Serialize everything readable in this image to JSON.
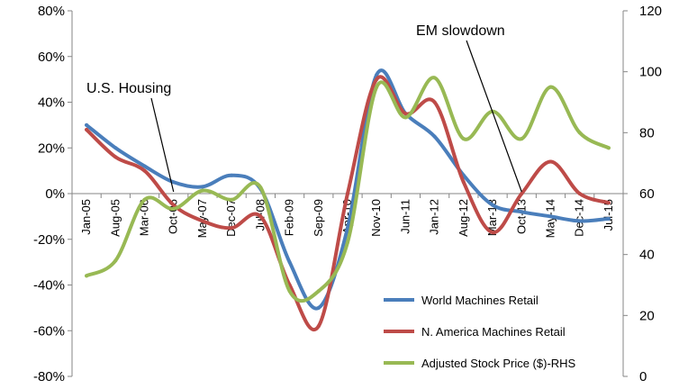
{
  "chart_data": {
    "type": "line",
    "x_tick_labels": [
      "Jan-05",
      "Aug-05",
      "Mar-06",
      "Oct-06",
      "May-07",
      "Dec-07",
      "Jul-08",
      "Feb-09",
      "Sep-09",
      "Apr-10",
      "Nov-10",
      "Jun-11",
      "Jan-12",
      "Aug-12",
      "Mar-13",
      "Oct-13",
      "May-14",
      "Dec-14",
      "Jul-15"
    ],
    "y_left": {
      "ylim": [
        -0.8,
        0.8
      ],
      "ticks": [
        "-80%",
        "-60%",
        "-40%",
        "-20%",
        "0%",
        "20%",
        "40%",
        "60%",
        "80%"
      ]
    },
    "y_right": {
      "ylim": [
        0,
        120
      ],
      "ticks": [
        "0",
        "20",
        "40",
        "60",
        "80",
        "100",
        "120"
      ]
    },
    "grid": false,
    "legend_position": "bottom-right",
    "series": [
      {
        "name": "World Machines Retail",
        "axis": "left",
        "color": "#4a7ebb",
        "x": [
          "Jan-05",
          "Aug-05",
          "Mar-06",
          "Oct-06",
          "May-07",
          "Dec-07",
          "Jul-08",
          "Feb-09",
          "Sep-09",
          "Apr-10",
          "Nov-10",
          "Jun-11",
          "Jan-12",
          "Aug-12",
          "Mar-13",
          "Oct-13",
          "May-14",
          "Dec-14",
          "Jul-15"
        ],
        "values": [
          0.3,
          0.2,
          0.12,
          0.05,
          0.03,
          0.08,
          0.02,
          -0.3,
          -0.5,
          -0.15,
          0.52,
          0.35,
          0.25,
          0.08,
          -0.05,
          -0.08,
          -0.1,
          -0.12,
          -0.11
        ]
      },
      {
        "name": "N. America Machines Retail",
        "axis": "left",
        "color": "#be4b48",
        "x": [
          "Jan-05",
          "Aug-05",
          "Mar-06",
          "Oct-06",
          "May-07",
          "Dec-07",
          "Jul-08",
          "Feb-09",
          "Sep-09",
          "Apr-10",
          "Nov-10",
          "Jun-11",
          "Jan-12",
          "Aug-12",
          "Mar-13",
          "Oct-13",
          "May-14",
          "Dec-14",
          "Jul-15"
        ],
        "values": [
          0.28,
          0.16,
          0.1,
          -0.05,
          -0.12,
          -0.15,
          -0.1,
          -0.4,
          -0.58,
          0.0,
          0.5,
          0.35,
          0.4,
          0.05,
          -0.17,
          0.0,
          0.14,
          0.0,
          -0.04
        ]
      },
      {
        "name": "Adjusted Stock Price ($)-RHS",
        "axis": "right",
        "color": "#98b954",
        "x": [
          "Jan-05",
          "Aug-05",
          "Mar-06",
          "Oct-06",
          "May-07",
          "Dec-07",
          "Jul-08",
          "Feb-09",
          "Sep-09",
          "Apr-10",
          "Nov-10",
          "Jun-11",
          "Jan-12",
          "Aug-12",
          "Mar-13",
          "Oct-13",
          "May-14",
          "Dec-14",
          "Jul-15"
        ],
        "values": [
          33,
          38,
          58,
          55,
          61,
          58,
          62,
          28,
          28,
          44,
          95,
          85,
          98,
          78,
          87,
          78,
          95,
          80,
          75
        ]
      }
    ],
    "annotations": [
      {
        "text": "U.S. Housing",
        "x": "Oct-06"
      },
      {
        "text": "EM slowdown",
        "x": "Oct-13"
      }
    ]
  }
}
